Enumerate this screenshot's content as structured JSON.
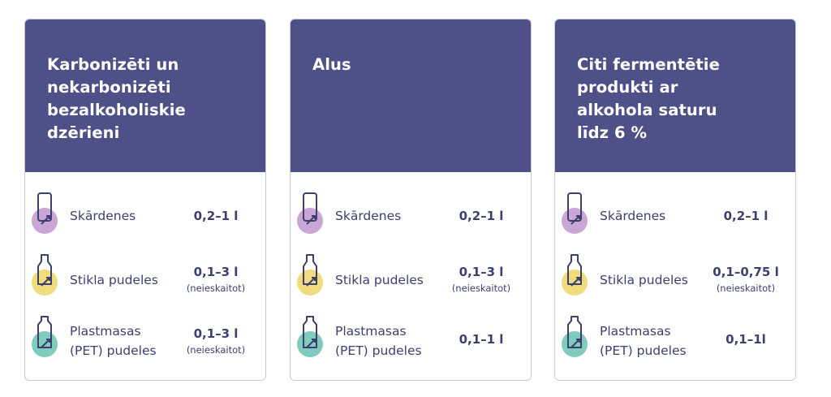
{
  "colors": {
    "header": "#4e5188",
    "text": "#3d3f6e",
    "can": "#c9a6d6",
    "glass": "#f0dc7c",
    "plastic": "#7fcbbd"
  },
  "cards": [
    {
      "title": "Karbonizēti un nekarbonizēti bezalkoholiskie dzērieni",
      "rows": [
        {
          "icon": "can-icon",
          "label": "Skārdenes",
          "value": "0,2–1 l",
          "note": ""
        },
        {
          "icon": "glass-bottle-icon",
          "label": "Stikla pudeles",
          "value": "0,1–3 l",
          "note": "(neieskaitot)"
        },
        {
          "icon": "plastic-bottle-icon",
          "label": "Plastmasas (PET) pudeles",
          "value": "0,1–3 l",
          "note": "(neieskaitot)"
        }
      ]
    },
    {
      "title": "Alus",
      "rows": [
        {
          "icon": "can-icon",
          "label": "Skārdenes",
          "value": "0,2–1 l",
          "note": ""
        },
        {
          "icon": "glass-bottle-icon",
          "label": "Stikla pudeles",
          "value": "0,1–3 l",
          "note": "(neieskaitot)"
        },
        {
          "icon": "plastic-bottle-icon",
          "label": "Plastmasas (PET) pudeles",
          "value": "0,1–1 l",
          "note": ""
        }
      ]
    },
    {
      "title": "Citi fermentētie produkti ar alkohola saturu līdz 6 %",
      "rows": [
        {
          "icon": "can-icon",
          "label": "Skārdenes",
          "value": "0,2–1 l",
          "note": ""
        },
        {
          "icon": "glass-bottle-icon",
          "label": "Stikla pudeles",
          "value": "0,1–0,75 l",
          "note": "(neieskaitot)"
        },
        {
          "icon": "plastic-bottle-icon",
          "label": "Plastmasas (PET) pudeles",
          "value": "0,1–1l",
          "note": ""
        }
      ]
    }
  ]
}
